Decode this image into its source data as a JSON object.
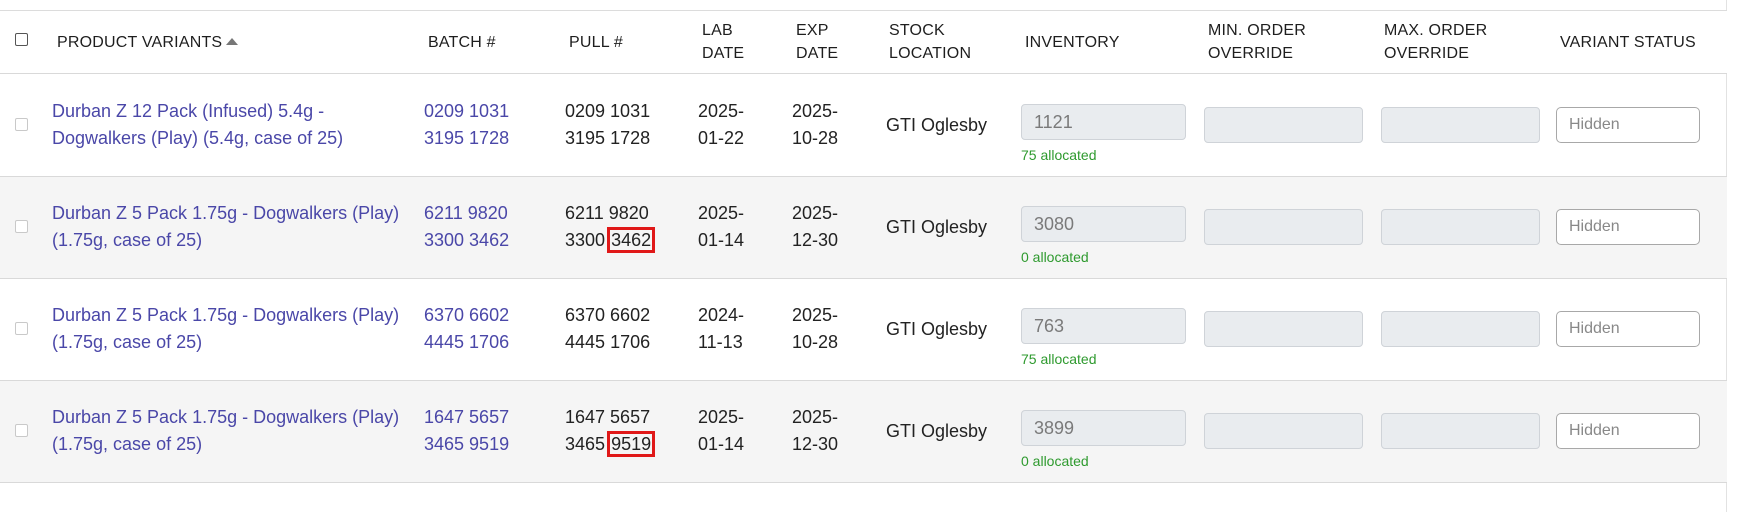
{
  "header": {
    "product_variants": "PRODUCT VARIANTS",
    "batch": "BATCH #",
    "pull": "PULL #",
    "lab_date_1": "LAB",
    "lab_date_2": "DATE",
    "exp_date_1": "EXP",
    "exp_date_2": "DATE",
    "stock_location_1": "STOCK",
    "stock_location_2": "LOCATION",
    "inventory": "INVENTORY",
    "min_order_1": "MIN. ORDER",
    "min_order_2": "OVERRIDE",
    "max_order_1": "MAX. ORDER",
    "max_order_2": "OVERRIDE",
    "variant_status": "VARIANT STATUS"
  },
  "rows": [
    {
      "product_line1": "Durban Z 12 Pack (Infused) 5.4g -",
      "product_line2": "Dogwalkers (Play) (5.4g, case of 25)",
      "batch_line1": "0209 1031",
      "batch_line2": "3195 1728",
      "pull_line1": "0209 1031",
      "pull_line2_a": "3195",
      "pull_line2_b": "1728",
      "lab_line1": "2025-",
      "lab_line2": "01-22",
      "exp_line1": "2025-",
      "exp_line2": "10-28",
      "location": "GTI Oglesby",
      "inventory": "1121",
      "allocated": "75 allocated",
      "status_placeholder": "Hidden"
    },
    {
      "product_line1": "Durban Z 5 Pack 1.75g - Dogwalkers (Play)",
      "product_line2": "(1.75g, case of 25)",
      "batch_line1": "6211 9820",
      "batch_line2": "3300 3462",
      "pull_line1": "6211 9820",
      "pull_line2_a": "3300",
      "pull_line2_b": "3462",
      "lab_line1": "2025-",
      "lab_line2": "01-14",
      "exp_line1": "2025-",
      "exp_line2": "12-30",
      "location": "GTI Oglesby",
      "inventory": "3080",
      "allocated": "0 allocated",
      "status_placeholder": "Hidden"
    },
    {
      "product_line1": "Durban Z 5 Pack 1.75g - Dogwalkers (Play)",
      "product_line2": "(1.75g, case of 25)",
      "batch_line1": "6370 6602",
      "batch_line2": "4445 1706",
      "pull_line1": "6370 6602",
      "pull_line2_a": "4445",
      "pull_line2_b": "1706",
      "lab_line1": "2024-",
      "lab_line2": "11-13",
      "exp_line1": "2025-",
      "exp_line2": "10-28",
      "location": "GTI Oglesby",
      "inventory": "763",
      "allocated": "75 allocated",
      "status_placeholder": "Hidden"
    },
    {
      "product_line1": "Durban Z 5 Pack 1.75g - Dogwalkers (Play)",
      "product_line2": "(1.75g, case of 25)",
      "batch_line1": "1647 5657",
      "batch_line2": "3465 9519",
      "pull_line1": "1647 5657",
      "pull_line2_a": "3465",
      "pull_line2_b": "9519",
      "lab_line1": "2025-",
      "lab_line2": "01-14",
      "exp_line1": "2025-",
      "exp_line2": "12-30",
      "location": "GTI Oglesby",
      "inventory": "3899",
      "allocated": "0 allocated",
      "status_placeholder": "Hidden"
    }
  ],
  "colors": {
    "link": "#4a47a8",
    "allocated": "#2e9a2e",
    "highlight": "#e01818"
  }
}
